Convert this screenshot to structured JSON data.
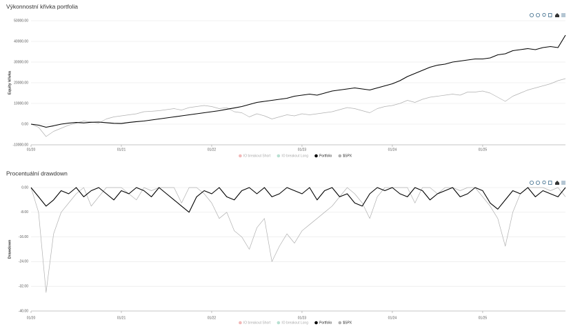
{
  "chart_data": [
    {
      "type": "line",
      "title": "Výkonnostní křivka portfolia",
      "y_label": "Equity křivka",
      "x": [
        "01/20",
        "02/20",
        "03/20",
        "04/20",
        "05/20",
        "06/20",
        "07/20",
        "08/20",
        "09/20",
        "10/20",
        "11/20",
        "12/20",
        "01/21",
        "02/21",
        "03/21",
        "04/21",
        "05/21",
        "06/21",
        "07/21",
        "08/21",
        "09/21",
        "10/21",
        "11/21",
        "12/21",
        "01/22",
        "02/22",
        "03/22",
        "04/22",
        "05/22",
        "06/22",
        "07/22",
        "08/22",
        "09/22",
        "10/22",
        "11/22",
        "12/22",
        "01/23",
        "02/23",
        "03/23",
        "04/23",
        "05/23",
        "06/23",
        "07/23",
        "08/23",
        "09/23",
        "10/23",
        "11/23",
        "12/23",
        "01/24",
        "02/24",
        "03/24",
        "04/24",
        "05/24",
        "06/24",
        "07/24",
        "08/24",
        "09/24",
        "10/24",
        "11/24",
        "12/24",
        "01/25",
        "02/25",
        "03/25",
        "04/25",
        "05/25",
        "06/25",
        "07/25",
        "08/25",
        "09/25",
        "10/25",
        "11/25",
        "12/25"
      ],
      "xticks": [
        "01/20",
        "01/21",
        "01/22",
        "01/23",
        "01/24",
        "01/25"
      ],
      "ylim": [
        -10000,
        50000
      ],
      "yticks": [
        {
          "value": -10000,
          "label": "-10000.00"
        },
        {
          "value": 0,
          "label": "0.00"
        },
        {
          "value": 10000,
          "label": "10000.00"
        },
        {
          "value": 20000,
          "label": "20000.00"
        },
        {
          "value": 30000,
          "label": "30000.00"
        },
        {
          "value": 40000,
          "label": "40000.00"
        },
        {
          "value": 50000,
          "label": "50000.00"
        }
      ],
      "grid": true,
      "series": [
        {
          "name": "IO breakout Short",
          "color": "#f2b8b8",
          "visible": false,
          "values": [
            null,
            null,
            null,
            null,
            null,
            null,
            null,
            null,
            null,
            null,
            null,
            null,
            null,
            null,
            null,
            null,
            null,
            null,
            null,
            null,
            null,
            null,
            null,
            null,
            null,
            null,
            null,
            null,
            null,
            null,
            null,
            null,
            null,
            null,
            null,
            null,
            null,
            null,
            null,
            null,
            null,
            null,
            null,
            null,
            null,
            null,
            null,
            null,
            null,
            null,
            null,
            null,
            null,
            null,
            null,
            null,
            null,
            null,
            null,
            null,
            null,
            null,
            null,
            null,
            null,
            null,
            null,
            null,
            null,
            null,
            null,
            null
          ]
        },
        {
          "name": "IO breakout Long",
          "color": "#b8e0d2",
          "visible": false,
          "values": [
            null,
            null,
            null,
            null,
            null,
            null,
            null,
            null,
            null,
            null,
            null,
            null,
            null,
            null,
            null,
            null,
            null,
            null,
            null,
            null,
            null,
            null,
            null,
            null,
            null,
            null,
            null,
            null,
            null,
            null,
            null,
            null,
            null,
            null,
            null,
            null,
            null,
            null,
            null,
            null,
            null,
            null,
            null,
            null,
            null,
            null,
            null,
            null,
            null,
            null,
            null,
            null,
            null,
            null,
            null,
            null,
            null,
            null,
            null,
            null,
            null,
            null,
            null,
            null,
            null,
            null,
            null,
            null,
            null,
            null,
            null,
            null
          ]
        },
        {
          "name": "Portfolio",
          "color": "#000000",
          "visible": true,
          "values": [
            0,
            -500,
            -1500,
            -800,
            0,
            500,
            800,
            600,
            900,
            1000,
            700,
            400,
            300,
            800,
            1200,
            1500,
            2000,
            2500,
            3000,
            3500,
            4000,
            4500,
            5000,
            5500,
            6000,
            6500,
            7200,
            7800,
            8500,
            9500,
            10500,
            11000,
            11500,
            12000,
            12500,
            13500,
            14000,
            14500,
            14000,
            15000,
            16000,
            16500,
            17000,
            17500,
            17000,
            16500,
            17500,
            18500,
            19500,
            21000,
            23000,
            24500,
            26000,
            27500,
            28500,
            29000,
            30000,
            30500,
            31000,
            31500,
            31500,
            32000,
            33500,
            34000,
            35500,
            36000,
            36500,
            36000,
            37000,
            37500,
            37000,
            43000
          ]
        },
        {
          "name": "$SPX",
          "color": "#b0b0b0",
          "visible": true,
          "values": [
            0,
            -1500,
            -6000,
            -3500,
            -2000,
            -500,
            500,
            1500,
            1000,
            500,
            2500,
            3500,
            4000,
            4500,
            5000,
            6000,
            6200,
            6500,
            7000,
            7500,
            6800,
            8000,
            8500,
            9000,
            8500,
            7500,
            8000,
            6000,
            5500,
            3500,
            5000,
            4000,
            2500,
            3500,
            4500,
            4000,
            5000,
            4500,
            5000,
            5500,
            6000,
            7000,
            8000,
            7500,
            6500,
            5500,
            7500,
            8500,
            9000,
            10000,
            11500,
            10500,
            12000,
            13000,
            13500,
            14000,
            14500,
            14000,
            15500,
            15500,
            16000,
            15000,
            13000,
            11000,
            13500,
            15000,
            16500,
            17500,
            18500,
            19500,
            21000,
            22000
          ]
        }
      ]
    },
    {
      "type": "line",
      "title": "Procentuální drawdown",
      "y_label": "Drawdown",
      "x": [
        "01/20",
        "02/20",
        "03/20",
        "04/20",
        "05/20",
        "06/20",
        "07/20",
        "08/20",
        "09/20",
        "10/20",
        "11/20",
        "12/20",
        "01/21",
        "02/21",
        "03/21",
        "04/21",
        "05/21",
        "06/21",
        "07/21",
        "08/21",
        "09/21",
        "10/21",
        "11/21",
        "12/21",
        "01/22",
        "02/22",
        "03/22",
        "04/22",
        "05/22",
        "06/22",
        "07/22",
        "08/22",
        "09/22",
        "10/22",
        "11/22",
        "12/22",
        "01/23",
        "02/23",
        "03/23",
        "04/23",
        "05/23",
        "06/23",
        "07/23",
        "08/23",
        "09/23",
        "10/23",
        "11/23",
        "12/23",
        "01/24",
        "02/24",
        "03/24",
        "04/24",
        "05/24",
        "06/24",
        "07/24",
        "08/24",
        "09/24",
        "10/24",
        "11/24",
        "12/24",
        "01/25",
        "02/25",
        "03/25",
        "04/25",
        "05/25",
        "06/25",
        "07/25",
        "08/25",
        "09/25",
        "10/25",
        "11/25",
        "12/25"
      ],
      "xticks": [
        "01/20",
        "01/21",
        "01/22",
        "01/23",
        "01/24",
        "01/25"
      ],
      "ylim": [
        -40,
        0
      ],
      "yticks": [
        {
          "value": -40,
          "label": "-40.00"
        },
        {
          "value": -32,
          "label": "-32.00"
        },
        {
          "value": -24,
          "label": "-24.00"
        },
        {
          "value": -16,
          "label": "-16.00"
        },
        {
          "value": -8,
          "label": "-8.00"
        },
        {
          "value": 0,
          "label": "0.00"
        }
      ],
      "grid": true,
      "series": [
        {
          "name": "IO breakout Short",
          "color": "#f2b8b8",
          "visible": false,
          "values": [
            null,
            null,
            null,
            null,
            null,
            null,
            null,
            null,
            null,
            null,
            null,
            null,
            null,
            null,
            null,
            null,
            null,
            null,
            null,
            null,
            null,
            null,
            null,
            null,
            null,
            null,
            null,
            null,
            null,
            null,
            null,
            null,
            null,
            null,
            null,
            null,
            null,
            null,
            null,
            null,
            null,
            null,
            null,
            null,
            null,
            null,
            null,
            null,
            null,
            null,
            null,
            null,
            null,
            null,
            null,
            null,
            null,
            null,
            null,
            null,
            null,
            null,
            null,
            null,
            null,
            null,
            null,
            null,
            null,
            null,
            null,
            null
          ]
        },
        {
          "name": "IO breakout Long",
          "color": "#b8e0d2",
          "visible": false,
          "values": [
            null,
            null,
            null,
            null,
            null,
            null,
            null,
            null,
            null,
            null,
            null,
            null,
            null,
            null,
            null,
            null,
            null,
            null,
            null,
            null,
            null,
            null,
            null,
            null,
            null,
            null,
            null,
            null,
            null,
            null,
            null,
            null,
            null,
            null,
            null,
            null,
            null,
            null,
            null,
            null,
            null,
            null,
            null,
            null,
            null,
            null,
            null,
            null,
            null,
            null,
            null,
            null,
            null,
            null,
            null,
            null,
            null,
            null,
            null,
            null,
            null,
            null,
            null,
            null,
            null,
            null,
            null,
            null,
            null,
            null,
            null,
            null
          ]
        },
        {
          "name": "Portfolio",
          "color": "#000000",
          "visible": true,
          "values": [
            0,
            -3,
            -6,
            -4,
            -1,
            -2,
            0,
            -3,
            -1,
            0,
            -2,
            -4,
            -1,
            -2,
            0,
            -1,
            -3,
            0,
            -2,
            -4,
            -6,
            -8,
            -3,
            -1,
            -2,
            0,
            -3,
            -4,
            -1,
            0,
            -2,
            0,
            -3,
            -2,
            0,
            -1,
            -2,
            0,
            -4,
            -1,
            0,
            -3,
            -2,
            -5,
            -6,
            -2,
            0,
            -1,
            0,
            -2,
            -3,
            0,
            -1,
            -4,
            -2,
            -1,
            0,
            -3,
            -2,
            0,
            -1,
            -5,
            -7,
            -4,
            -1,
            -2,
            0,
            -3,
            -1,
            -2,
            -3,
            0
          ]
        },
        {
          "name": "$SPX",
          "color": "#b0b0b0",
          "visible": true,
          "values": [
            0,
            -8,
            -34,
            -15,
            -8,
            -5,
            -2,
            0,
            -6,
            -3,
            0,
            0,
            0,
            -2,
            -4,
            0,
            -1,
            0,
            0,
            0,
            -5,
            0,
            0,
            -2,
            -5,
            -10,
            -8,
            -14,
            -16,
            -20,
            -13,
            -10,
            -24,
            -19,
            -15,
            -18,
            -14,
            -12,
            -10,
            -8,
            -6,
            -3,
            0,
            -2,
            -5,
            -10,
            -3,
            0,
            0,
            0,
            0,
            -5,
            0,
            0,
            -2,
            0,
            0,
            -1,
            0,
            0,
            -3,
            -6,
            -10,
            -19,
            -8,
            -2,
            0,
            0,
            0,
            -1,
            0,
            -3
          ]
        }
      ]
    }
  ]
}
